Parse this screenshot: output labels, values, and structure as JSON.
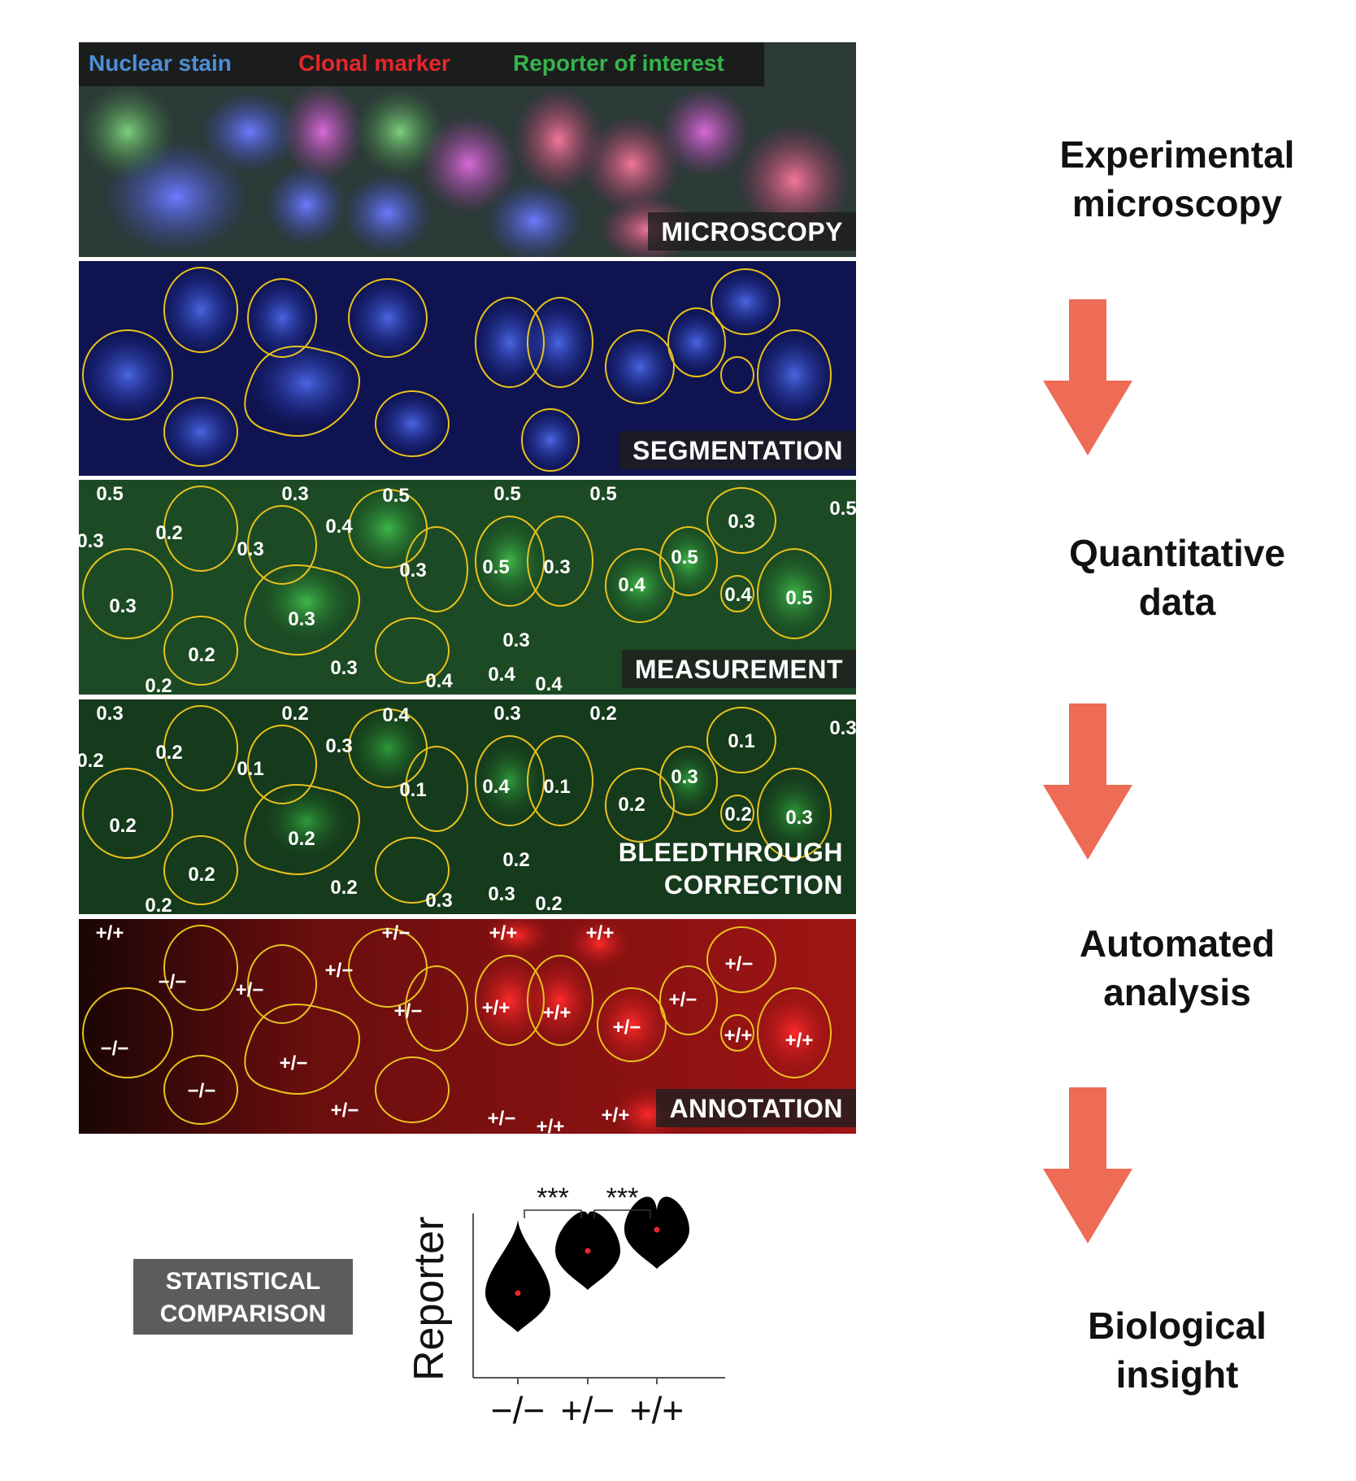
{
  "figure": {
    "legend": {
      "nuclear": "Nuclear stain",
      "clonal": "Clonal marker",
      "reporter": "Reporter of interest",
      "colors": {
        "nuclear": "#4d8fd8",
        "clonal": "#e8262b",
        "reporter": "#36b44a"
      }
    },
    "panels": {
      "microscopy": "MICROSCOPY",
      "segmentation": "SEGMENTATION",
      "measurement": "MEASUREMENT",
      "bleed_line1": "BLEEDTHROUGH",
      "bleed_line2": "CORRECTION",
      "annotation": "ANNOTATION"
    },
    "measurement_values": [
      "0.5",
      "0.3",
      "0.5",
      "0.5",
      "0.5",
      "0.5",
      "0.3",
      "0.2",
      "0.3",
      "0.4",
      "0.3",
      "0.5",
      "0.3",
      "0.4",
      "0.5",
      "0.4",
      "0.5",
      "0.3",
      "0.3",
      "0.2",
      "0.3",
      "0.3",
      "0.2",
      "0.4",
      "0.4",
      "0.4",
      "0.3"
    ],
    "bleed_values": [
      "0.3",
      "0.2",
      "0.4",
      "0.3",
      "0.2",
      "0.3",
      "0.2",
      "0.2",
      "0.1",
      "0.3",
      "0.1",
      "0.4",
      "0.1",
      "0.3",
      "0.1",
      "0.2",
      "0.2",
      "0.3",
      "0.2",
      "0.2",
      "0.2",
      "0.2",
      "0.2",
      "0.3",
      "0.3",
      "0.2",
      "0.2"
    ],
    "annotation_values": [
      "+/+",
      "+/−",
      "+/+",
      "+/+",
      "+/−",
      "−/−",
      "+/−",
      "+/−",
      "+/−",
      "+/+",
      "+/+",
      "+/−",
      "+/−",
      "+/+",
      "+/+",
      "−/−",
      "+/−",
      "−/−",
      "+/−",
      "+/−",
      "+/+",
      "+/+"
    ],
    "stat_box": {
      "line1": "STATISTICAL",
      "line2": "COMPARISON"
    },
    "stages": {
      "s1_l1": "Experimental",
      "s1_l2": "microscopy",
      "s2_l1": "Quantitative",
      "s2_l2": "data",
      "s3_l1": "Automated",
      "s3_l2": "analysis",
      "s4_l1": "Biological",
      "s4_l2": "insight"
    },
    "arrow_color": "#ee6b55"
  },
  "chart_data": {
    "type": "violin",
    "title": "",
    "ylabel": "Reporter",
    "xlabel": "",
    "categories": [
      "−/−",
      "+/−",
      "+/+"
    ],
    "medians": [
      0.2,
      0.3,
      0.35
    ],
    "significance": [
      {
        "from": "−/−",
        "to": "+/−",
        "label": "***"
      },
      {
        "from": "+/−",
        "to": "+/+",
        "label": "***"
      }
    ],
    "grid": false,
    "legend": "none"
  }
}
